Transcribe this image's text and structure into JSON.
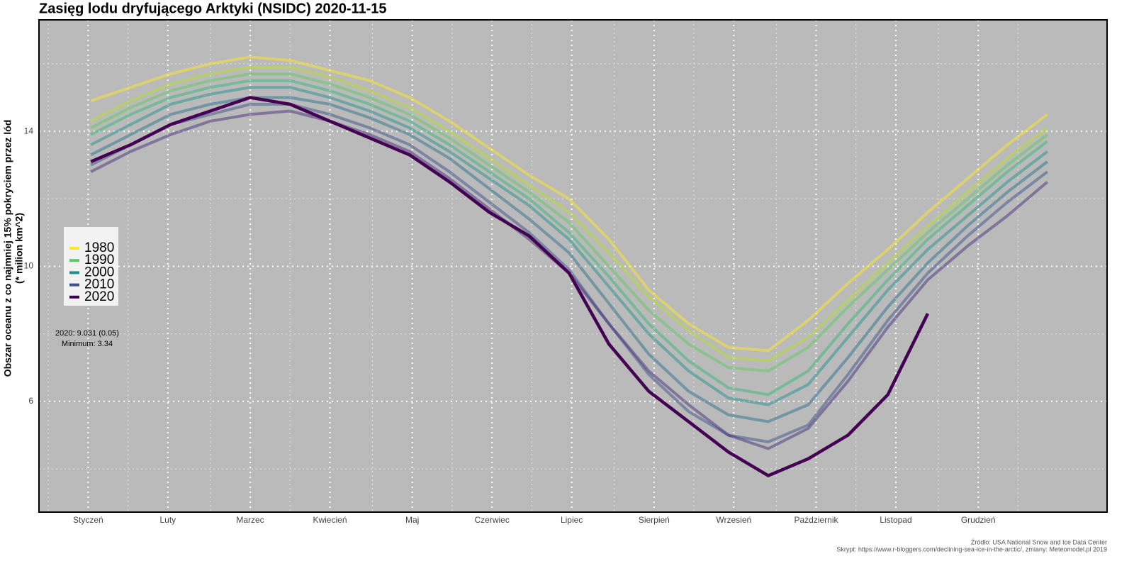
{
  "chart_data": {
    "type": "line",
    "title": "Zasięg lodu dryfującego Arktyki (NSIDC) 2020-11-15",
    "y_label": [
      "Obszar oceanu z co najmniej 15% pokryciem przez lód",
      "(* milion km^2)"
    ],
    "annotations": [
      "2020: 9.031 (0.05)",
      "Minimum: 3.34"
    ],
    "source": [
      "Źródło: USA National Snow and Ice Data Center",
      "Skrypt: https://www.r-bloggers.com/declining-sea-ice-in-the-arctic/, zmiany: Meteomodel.pl 2019"
    ],
    "x": [
      1,
      16,
      31,
      46,
      61,
      76,
      91,
      106,
      121,
      136,
      151,
      166,
      181,
      196,
      211,
      226,
      241,
      256,
      271,
      286,
      301,
      316,
      331,
      346,
      361
    ],
    "xlim": [
      -18.5,
      383.5
    ],
    "xticks": [
      {
        "value": 0,
        "label": "Styczeń"
      },
      {
        "value": 30,
        "label": "Luty"
      },
      {
        "value": 61,
        "label": "Marzec"
      },
      {
        "value": 91,
        "label": "Kwiecień"
      },
      {
        "value": 122,
        "label": "Maj"
      },
      {
        "value": 152,
        "label": "Czerwiec"
      },
      {
        "value": 182,
        "label": "Lipiec"
      },
      {
        "value": 213,
        "label": "Sierpień"
      },
      {
        "value": 243,
        "label": "Wrzesień"
      },
      {
        "value": 274,
        "label": "Październik"
      },
      {
        "value": 304,
        "label": "Listopad"
      },
      {
        "value": 335,
        "label": "Grudzień"
      }
    ],
    "minor_xticks": [
      -15,
      15,
      46,
      76,
      107,
      137,
      167,
      198,
      228,
      259,
      289,
      320,
      350
    ],
    "ylim": [
      2.72,
      17.3
    ],
    "yticks": [
      6,
      10,
      14
    ],
    "minor_yticks": [
      4,
      8,
      12,
      16
    ],
    "grid": true,
    "series": [
      {
        "name": "1980",
        "color": "#fde725",
        "opacity": 0.5,
        "width": 4,
        "values": [
          14.9,
          15.3,
          15.7,
          16.0,
          16.2,
          16.1,
          15.8,
          15.5,
          15.0,
          14.3,
          13.5,
          12.7,
          12.0,
          10.8,
          9.3,
          8.3,
          7.6,
          7.5,
          8.4,
          9.5,
          10.5,
          11.6,
          12.6,
          13.6,
          14.5
        ]
      },
      {
        "color": "#b5de2b",
        "opacity": 0.5,
        "width": 4,
        "values": [
          14.3,
          14.9,
          15.4,
          15.7,
          15.9,
          15.9,
          15.6,
          15.2,
          14.7,
          14.0,
          13.2,
          12.4,
          11.6,
          10.4,
          9.1,
          8.1,
          7.3,
          7.2,
          7.9,
          9.0,
          10.1,
          11.2,
          12.2,
          13.2,
          14.1
        ]
      },
      {
        "name": "1990",
        "color": "#5ec962",
        "opacity": 0.5,
        "width": 4,
        "values": [
          14.1,
          14.7,
          15.2,
          15.5,
          15.7,
          15.7,
          15.4,
          15.0,
          14.5,
          13.8,
          13.0,
          12.2,
          11.3,
          10.0,
          8.7,
          7.7,
          7.0,
          6.9,
          7.6,
          8.8,
          9.9,
          11.0,
          12.0,
          13.0,
          13.9
        ]
      },
      {
        "color": "#35b779",
        "opacity": 0.5,
        "width": 4,
        "values": [
          13.9,
          14.5,
          15.0,
          15.3,
          15.5,
          15.5,
          15.2,
          14.8,
          14.3,
          13.6,
          12.8,
          12.0,
          11.0,
          9.7,
          8.3,
          7.2,
          6.4,
          6.2,
          6.9,
          8.3,
          9.6,
          10.8,
          11.8,
          12.8,
          13.7
        ]
      },
      {
        "name": "2000",
        "color": "#21918c",
        "opacity": 0.5,
        "width": 4,
        "values": [
          13.6,
          14.2,
          14.8,
          15.1,
          15.3,
          15.3,
          15.0,
          14.6,
          14.1,
          13.4,
          12.6,
          11.8,
          10.8,
          9.4,
          8.0,
          6.9,
          6.1,
          5.9,
          6.5,
          7.9,
          9.3,
          10.5,
          11.5,
          12.5,
          13.4
        ]
      },
      {
        "color": "#2c728e",
        "opacity": 0.5,
        "width": 4,
        "values": [
          13.3,
          13.9,
          14.5,
          14.8,
          15.0,
          15.0,
          14.8,
          14.4,
          13.9,
          13.2,
          12.3,
          11.4,
          10.4,
          8.9,
          7.4,
          6.3,
          5.6,
          5.4,
          5.9,
          7.3,
          8.8,
          10.1,
          11.2,
          12.2,
          13.1
        ]
      },
      {
        "name": "2010",
        "color": "#3b528b",
        "opacity": 0.5,
        "width": 4,
        "values": [
          13.0,
          13.6,
          14.2,
          14.5,
          14.8,
          14.8,
          14.5,
          14.1,
          13.6,
          12.8,
          11.9,
          11.0,
          9.9,
          8.3,
          6.8,
          5.7,
          5.0,
          4.8,
          5.3,
          6.8,
          8.4,
          9.8,
          10.9,
          11.9,
          12.8
        ]
      },
      {
        "color": "#472d7b",
        "opacity": 0.5,
        "width": 4,
        "values": [
          12.8,
          13.4,
          13.9,
          14.3,
          14.5,
          14.6,
          14.3,
          13.9,
          13.4,
          12.6,
          11.7,
          10.8,
          9.8,
          8.3,
          6.9,
          5.9,
          5.0,
          4.6,
          5.2,
          6.6,
          8.2,
          9.6,
          10.6,
          11.5,
          12.5
        ]
      },
      {
        "name": "2020",
        "color": "#440154",
        "opacity": 1,
        "width": 4.5,
        "values": [
          13.1,
          13.6,
          14.2,
          14.6,
          15.0,
          14.8,
          14.3,
          13.8,
          13.3,
          12.5,
          11.6,
          10.9,
          9.8,
          7.7,
          6.3,
          5.4,
          4.5,
          3.8,
          4.3,
          5.0,
          6.2,
          8.6,
          null,
          null,
          null
        ]
      }
    ]
  }
}
